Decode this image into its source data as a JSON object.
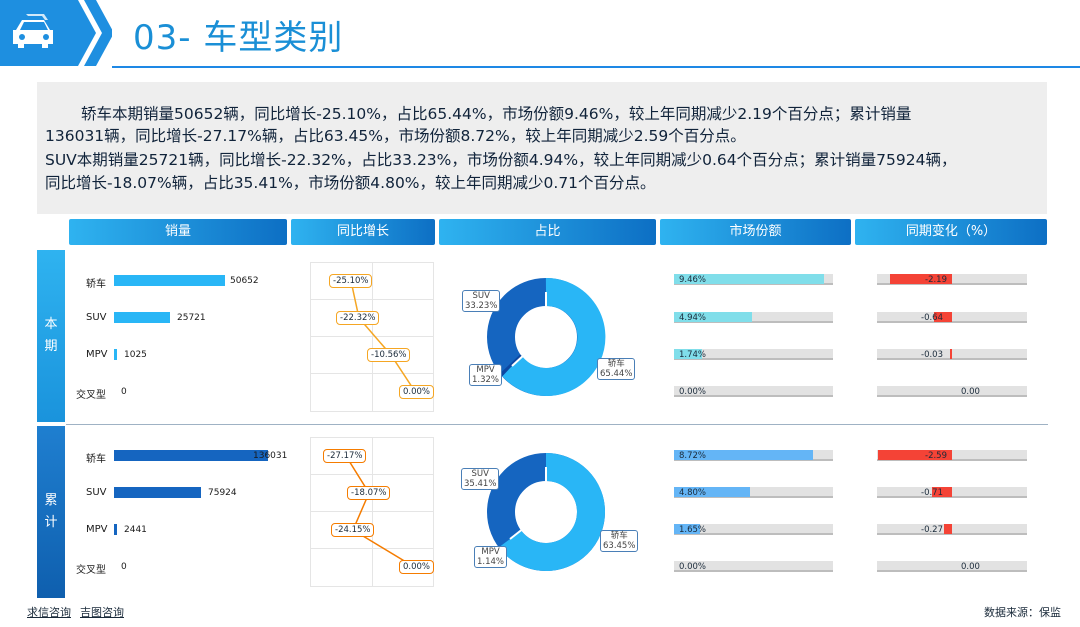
{
  "header": {
    "title": "03- 车型类别",
    "icon": "car-icon"
  },
  "summary": {
    "lines": [
      "轿车本期销量50652辆，同比增长-25.10%，占比65.44%，市场份额9.46%，较上年同期减少2.19个百分点；累计销量",
      "136031辆，同比增长-27.17%辆，占比63.45%，市场份额8.72%，较上年同期减少2.59个百分点。",
      "SUV本期销量25721辆，同比增长-22.32%，占比33.23%，市场份额4.94%，较上年同期减少0.64个百分点；累计销量75924辆，",
      "同比增长-18.07%辆，占比35.41%，市场份额4.80%，较上年同期减少0.71个百分点。"
    ]
  },
  "columns": [
    "销量",
    "同比增长",
    "占比",
    "市场份额",
    "同期变化（%）"
  ],
  "sections": {
    "current": {
      "label_1": "本",
      "label_2": "期",
      "categories": [
        "轿车",
        "SUV",
        "MPV",
        "交叉型"
      ],
      "sales": [
        "50652",
        "25721",
        "1025",
        "0"
      ],
      "growth": [
        "-25.10%",
        "-22.32%",
        "-10.56%",
        "0.00%"
      ],
      "share_of_total": {
        "sedan": "轿车\n65.44%",
        "suv": "SUV\n33.23%",
        "mpv": "MPV\n1.32%"
      },
      "market_share": [
        "9.46%",
        "4.94%",
        "1.74%",
        "0.00%"
      ],
      "change": [
        "-2.19",
        "-0.64",
        "-0.03",
        "0.00"
      ]
    },
    "cumulative": {
      "label_1": "累",
      "label_2": "计",
      "categories": [
        "轿车",
        "SUV",
        "MPV",
        "交叉型"
      ],
      "sales": [
        "136031",
        "75924",
        "2441",
        "0"
      ],
      "growth": [
        "-27.17%",
        "-18.07%",
        "-24.15%",
        "0.00%"
      ],
      "share_of_total": {
        "sedan": "轿车\n63.45%",
        "suv": "SUV\n35.41%",
        "mpv": "MPV\n1.14%"
      },
      "market_share": [
        "8.72%",
        "4.80%",
        "1.65%",
        "0.00%"
      ],
      "change": [
        "-2.59",
        "-0.71",
        "-0.27",
        "0.00"
      ]
    }
  },
  "footer": {
    "link1": "求信咨询",
    "link2": "吉图咨询",
    "source": "数据来源：保监"
  },
  "colors": {
    "accent": "#1e88e5",
    "light_bar": "#29b6f6",
    "dark_bar": "#1565c0",
    "orange": "#f5a623",
    "red": "#f44336"
  },
  "chart_data": [
    {
      "type": "bar",
      "series_group": "current_sales",
      "categories": [
        "轿车",
        "SUV",
        "MPV",
        "交叉型"
      ],
      "values": [
        50652,
        25721,
        1025,
        0
      ]
    },
    {
      "type": "line",
      "series_group": "current_growth",
      "categories": [
        "轿车",
        "SUV",
        "MPV",
        "交叉型"
      ],
      "values": [
        -25.1,
        -22.32,
        -10.56,
        0.0
      ]
    },
    {
      "type": "pie",
      "series_group": "current_share",
      "categories": [
        "轿车",
        "SUV",
        "MPV"
      ],
      "values": [
        65.44,
        33.23,
        1.32
      ]
    },
    {
      "type": "bar",
      "series_group": "current_market_share",
      "categories": [
        "轿车",
        "SUV",
        "MPV",
        "交叉型"
      ],
      "values": [
        9.46,
        4.94,
        1.74,
        0.0
      ]
    },
    {
      "type": "bar",
      "series_group": "current_change",
      "categories": [
        "轿车",
        "SUV",
        "MPV",
        "交叉型"
      ],
      "values": [
        -2.19,
        -0.64,
        -0.03,
        0.0
      ]
    },
    {
      "type": "bar",
      "series_group": "cumulative_sales",
      "categories": [
        "轿车",
        "SUV",
        "MPV",
        "交叉型"
      ],
      "values": [
        136031,
        75924,
        2441,
        0
      ]
    },
    {
      "type": "line",
      "series_group": "cumulative_growth",
      "categories": [
        "轿车",
        "SUV",
        "MPV",
        "交叉型"
      ],
      "values": [
        -27.17,
        -18.07,
        -24.15,
        0.0
      ]
    },
    {
      "type": "pie",
      "series_group": "cumulative_share",
      "categories": [
        "轿车",
        "SUV",
        "MPV"
      ],
      "values": [
        63.45,
        35.41,
        1.14
      ]
    },
    {
      "type": "bar",
      "series_group": "cumulative_market_share",
      "categories": [
        "轿车",
        "SUV",
        "MPV",
        "交叉型"
      ],
      "values": [
        8.72,
        4.8,
        1.65,
        0.0
      ]
    },
    {
      "type": "bar",
      "series_group": "cumulative_change",
      "categories": [
        "轿车",
        "SUV",
        "MPV",
        "交叉型"
      ],
      "values": [
        -2.59,
        -0.71,
        -0.27,
        0.0
      ]
    }
  ]
}
